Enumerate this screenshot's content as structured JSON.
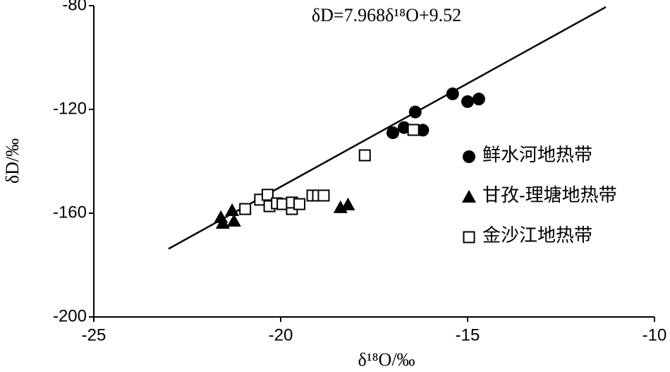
{
  "chart_data": {
    "type": "scatter",
    "title": "δD=7.968δ¹⁸O+9.52",
    "x_label": "δ¹⁸O/‰",
    "y_label": "δD/‰",
    "xlim": [
      -25,
      -10
    ],
    "xticks": [
      -25,
      -20,
      -15,
      -10
    ],
    "ylim": [
      -200,
      -80
    ],
    "yticks": [
      -200,
      -160,
      -120,
      -80
    ],
    "legend": "right",
    "fit_line": {
      "x": [
        -23,
        -11.3
      ],
      "values": [
        -173.74,
        -80.52
      ],
      "color": "#000000"
    },
    "series": [
      {
        "name": "鲜水河地热带",
        "marker": "circle",
        "color": "#000000",
        "x": [
          -17.0,
          -16.7,
          -16.4,
          -16.2,
          -15.4,
          -15.0,
          -14.7
        ],
        "values": [
          -129,
          -127,
          -121,
          -128,
          -114,
          -117,
          -116
        ]
      },
      {
        "name": "甘孜-理塘地热带",
        "marker": "triangle",
        "color": "#000000",
        "x": [
          -21.6,
          -21.55,
          -21.3,
          -21.25,
          -18.4,
          -18.2
        ],
        "values": [
          -161.6,
          -163.8,
          -158.9,
          -163,
          -157.8,
          -156.7
        ]
      },
      {
        "name": "金沙江地热带",
        "marker": "square",
        "color": "#000000",
        "x": [
          -20.95,
          -20.55,
          -20.35,
          -20.3,
          -20.1,
          -19.95,
          -19.7,
          -19.7,
          -19.5,
          -19.15,
          -19.0,
          -18.85,
          -17.75,
          -16.45
        ],
        "values": [
          -158.4,
          -154.8,
          -152.9,
          -157.3,
          -156.2,
          -156.5,
          -158.4,
          -155.9,
          -156.5,
          -153.2,
          -153.2,
          -153.2,
          -137.7,
          -127.9
        ]
      }
    ]
  }
}
